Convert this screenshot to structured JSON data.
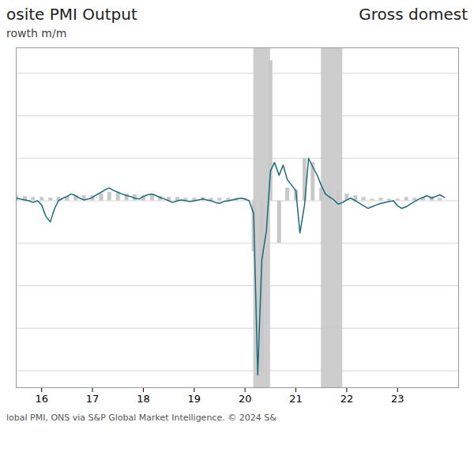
{
  "chart_data": {
    "type": "bar",
    "title": "osite PMI Output",
    "title_right": "Gross domest",
    "subtitle": "rowth m/m",
    "caption": "lobal PMI, ONS via S&P Global Market Intelligence. © 2024 S&",
    "xlim": [
      2015.5,
      2024.2
    ],
    "xticks": [
      {
        "value": 2016,
        "label": "16"
      },
      {
        "value": 2017,
        "label": "17"
      },
      {
        "value": 2018,
        "label": "18"
      },
      {
        "value": 2019,
        "label": "19"
      },
      {
        "value": 2020,
        "label": "20"
      },
      {
        "value": 2021,
        "label": "21"
      },
      {
        "value": 2022,
        "label": "22"
      },
      {
        "value": 2023,
        "label": "23"
      }
    ],
    "ylim": [
      -22,
      18
    ],
    "yticks": [
      -20,
      -15,
      -10,
      -5,
      0,
      5,
      10,
      15
    ],
    "grid": true,
    "tick_labels": "x",
    "shaded_ranges": [
      {
        "start": 2020.17,
        "end": 2020.5,
        "color": "#b8b8b8"
      },
      {
        "start": 2021.5,
        "end": 2021.92,
        "color": "#b8b8b8"
      }
    ],
    "series": [
      {
        "type": "bar",
        "color": "#c8c8c8",
        "x": [
          2015.5,
          2015.67,
          2015.83,
          2016.0,
          2016.17,
          2016.33,
          2016.5,
          2016.67,
          2016.83,
          2017.0,
          2017.17,
          2017.33,
          2017.5,
          2017.67,
          2017.83,
          2018.0,
          2018.17,
          2018.33,
          2018.5,
          2018.67,
          2018.83,
          2019.0,
          2019.17,
          2019.33,
          2019.5,
          2019.67,
          2019.83,
          2020.0,
          2020.17,
          2020.33,
          2020.5,
          2020.67,
          2020.83,
          2021.0,
          2021.17,
          2021.33,
          2021.5,
          2021.67,
          2021.83,
          2022.0,
          2022.17,
          2022.33,
          2022.5,
          2022.67,
          2022.83,
          2023.0,
          2023.17,
          2023.33,
          2023.5,
          2023.67,
          2023.83
        ],
        "values": [
          0.6,
          0.5,
          0.4,
          0.4,
          0.3,
          0.4,
          0.5,
          0.6,
          0.6,
          0.6,
          0.8,
          1.0,
          0.9,
          0.8,
          0.7,
          0.6,
          0.8,
          0.5,
          0.4,
          0.4,
          0.3,
          0.3,
          0.4,
          0.3,
          0.3,
          0.3,
          0.3,
          0.3,
          -6.0,
          -20.0,
          16.5,
          -5.0,
          1.5,
          1.3,
          5.0,
          4.5,
          1.5,
          1.0,
          1.2,
          0.8,
          0.6,
          0.4,
          0.2,
          0.3,
          0.2,
          0.2,
          0.4,
          0.3,
          0.4,
          0.5,
          0.3
        ]
      },
      {
        "type": "line",
        "color": "#1b6b7b",
        "x": [
          2015.5,
          2015.58,
          2015.67,
          2015.75,
          2015.83,
          2015.92,
          2016.0,
          2016.08,
          2016.17,
          2016.25,
          2016.33,
          2016.42,
          2016.5,
          2016.58,
          2016.67,
          2016.75,
          2016.83,
          2016.92,
          2017.0,
          2017.08,
          2017.17,
          2017.25,
          2017.33,
          2017.42,
          2017.5,
          2017.58,
          2017.67,
          2017.75,
          2017.83,
          2017.92,
          2018.0,
          2018.08,
          2018.17,
          2018.25,
          2018.33,
          2018.42,
          2018.5,
          2018.58,
          2018.67,
          2018.75,
          2018.83,
          2018.92,
          2019.0,
          2019.08,
          2019.17,
          2019.25,
          2019.33,
          2019.42,
          2019.5,
          2019.58,
          2019.67,
          2019.75,
          2019.83,
          2019.92,
          2020.0,
          2020.08,
          2020.17,
          2020.25,
          2020.33,
          2020.42,
          2020.5,
          2020.58,
          2020.67,
          2020.75,
          2020.83,
          2020.92,
          2021.0,
          2021.08,
          2021.17,
          2021.25,
          2021.33,
          2021.42,
          2021.5,
          2021.58,
          2021.67,
          2021.75,
          2021.83,
          2021.92,
          2022.0,
          2022.08,
          2022.17,
          2022.25,
          2022.33,
          2022.42,
          2022.5,
          2022.58,
          2022.67,
          2022.75,
          2022.83,
          2022.92,
          2023.0,
          2023.08,
          2023.17,
          2023.25,
          2023.33,
          2023.42,
          2023.5,
          2023.58,
          2023.67,
          2023.75,
          2023.83,
          2023.92
        ],
        "values": [
          0.3,
          0.2,
          0.1,
          0.0,
          -0.2,
          0.0,
          -0.5,
          -1.8,
          -2.5,
          -1.0,
          0.0,
          0.3,
          0.5,
          0.8,
          0.6,
          0.3,
          0.1,
          0.2,
          0.4,
          0.7,
          1.0,
          1.3,
          1.5,
          1.2,
          1.0,
          0.8,
          0.6,
          0.5,
          0.3,
          0.2,
          0.5,
          0.7,
          0.8,
          0.6,
          0.4,
          0.2,
          0.0,
          -0.2,
          0.0,
          0.1,
          0.0,
          -0.1,
          0.0,
          0.1,
          0.2,
          0.1,
          0.0,
          -0.2,
          -0.3,
          -0.1,
          0.0,
          0.1,
          0.2,
          0.3,
          0.2,
          0.0,
          -1.5,
          -20.5,
          -7.0,
          -3.5,
          3.5,
          4.5,
          3.0,
          4.2,
          2.5,
          1.8,
          1.2,
          -3.8,
          -0.5,
          5.0,
          4.0,
          3.0,
          1.8,
          0.8,
          0.4,
          0.1,
          -0.4,
          -0.2,
          0.1,
          0.3,
          0.0,
          -0.3,
          -0.6,
          -0.9,
          -0.7,
          -0.5,
          -0.3,
          -0.2,
          -0.1,
          0.0,
          -0.6,
          -0.9,
          -0.7,
          -0.4,
          -0.1,
          0.2,
          0.4,
          0.6,
          0.3,
          0.5,
          0.7,
          0.4
        ]
      }
    ]
  }
}
